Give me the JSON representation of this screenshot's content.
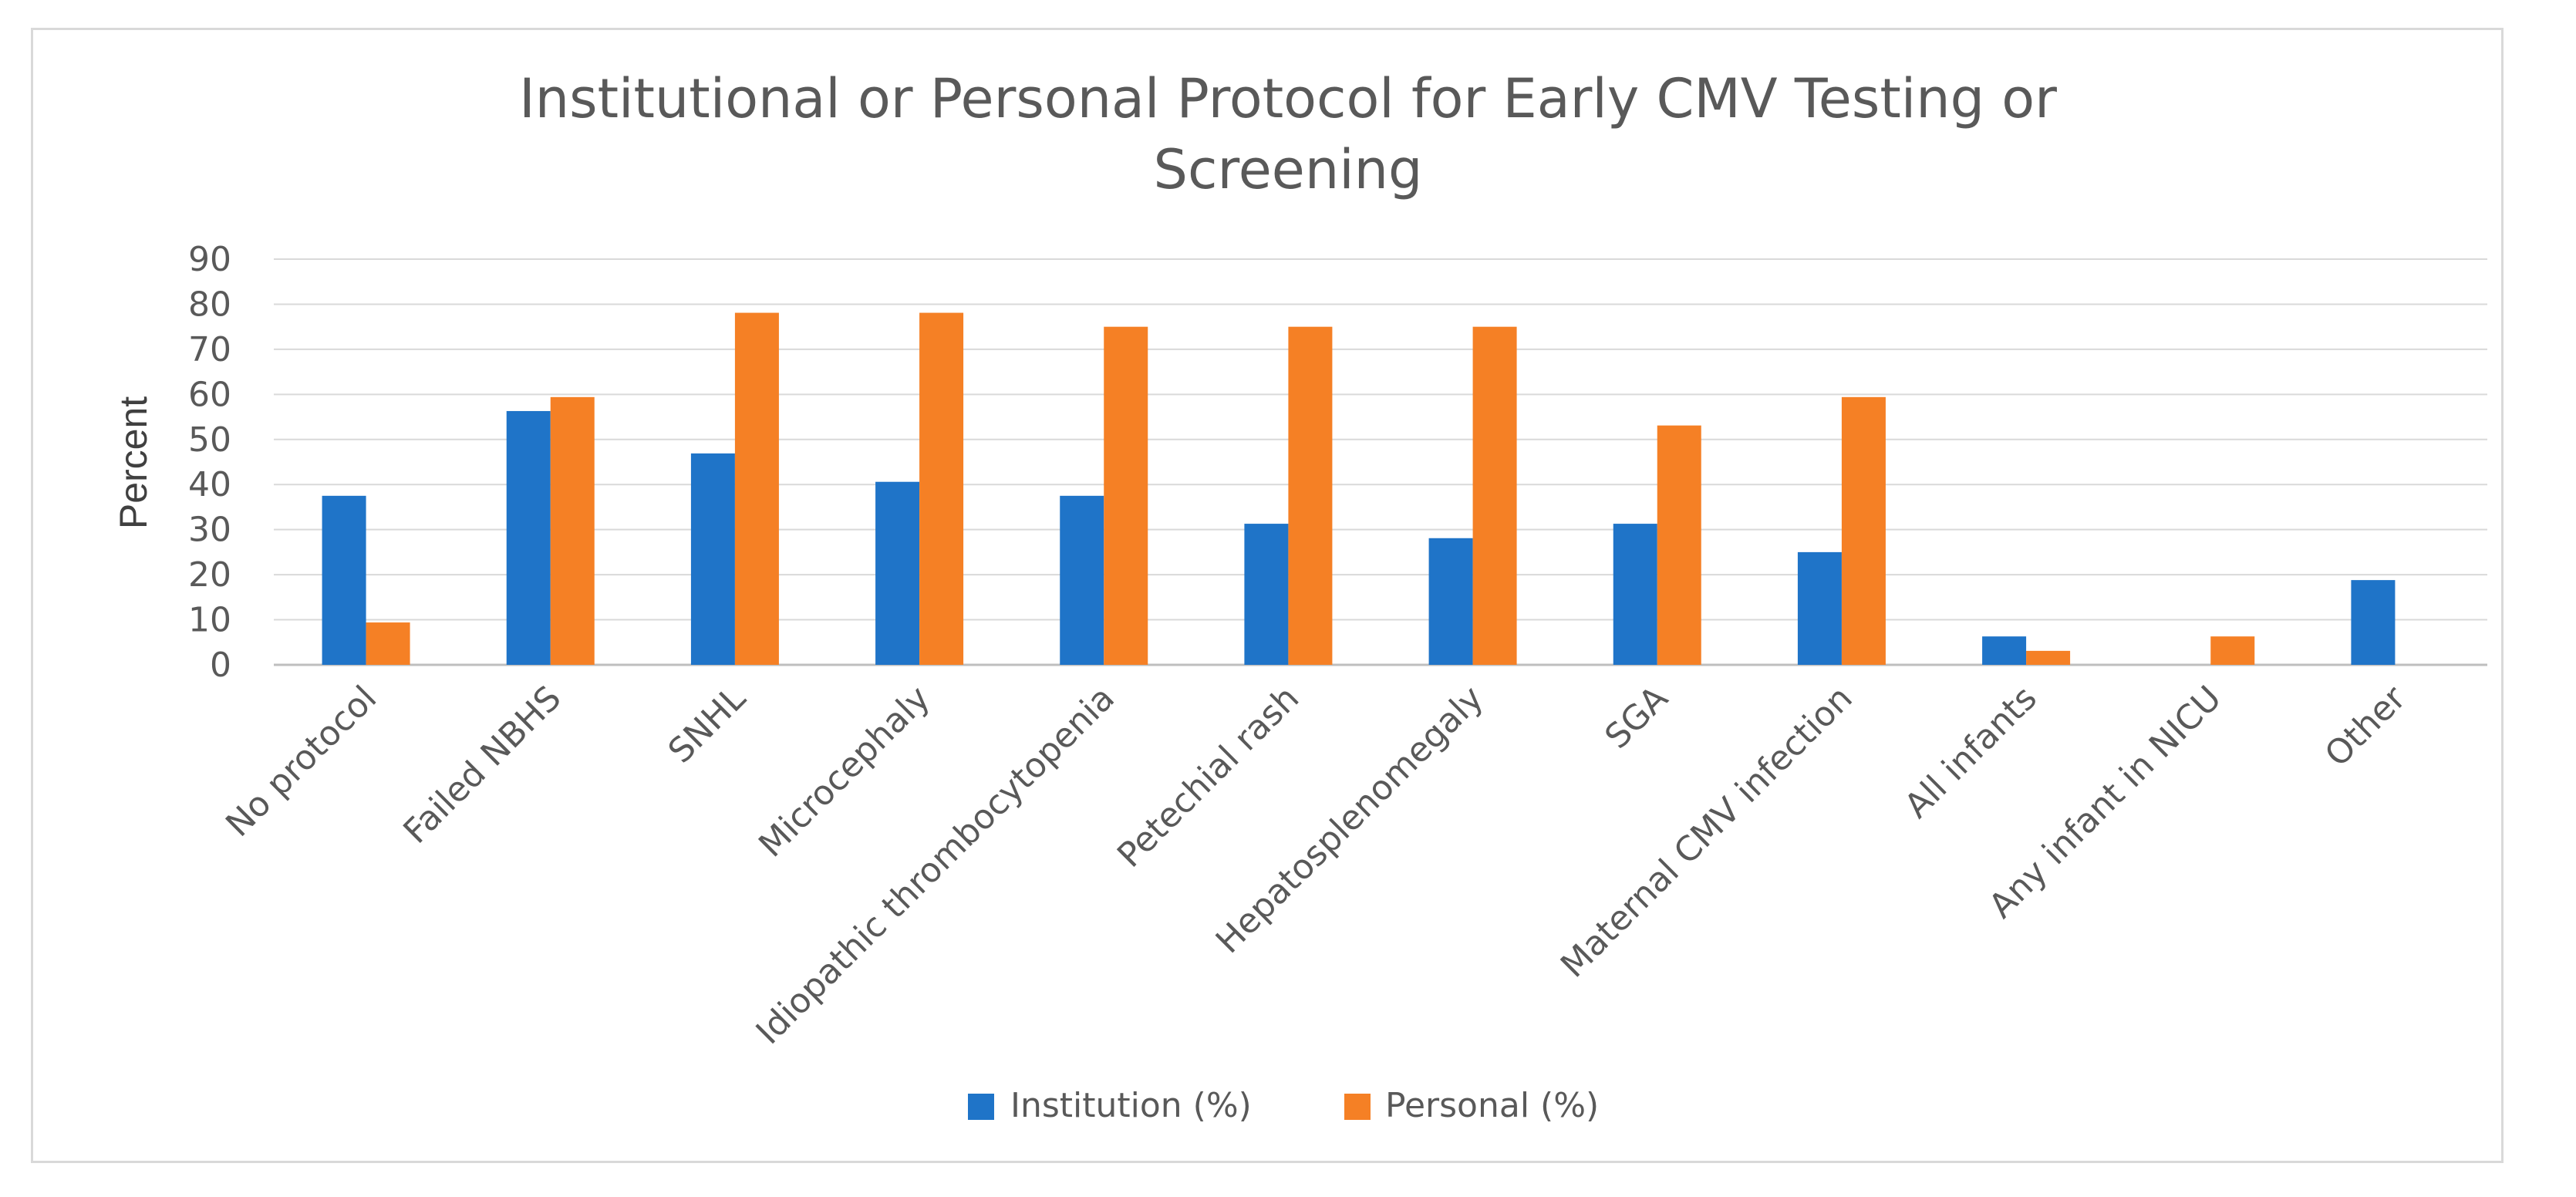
{
  "chart_data": {
    "type": "bar",
    "title_lines": [
      "Institutional or Personal Protocol for Early CMV Testing or",
      "Screening"
    ],
    "xlabel": "",
    "ylabel": "Percent",
    "ylim": [
      0,
      90
    ],
    "ytick_step": 10,
    "grid": true,
    "legend_position": "bottom-center",
    "categories": [
      "No protocol",
      "Failed NBHS",
      "SNHL",
      "Microcephaly",
      "Idiopathic thrombocytopenia",
      "Petechial rash",
      "Hepatosplenomegaly",
      "SGA",
      "Maternal CMV infection",
      "All infants",
      "Any infant in NICU",
      "Other"
    ],
    "series": [
      {
        "name": "Institution (%)",
        "color": "#1f74c8",
        "values": [
          37.5,
          56.3,
          46.9,
          40.6,
          37.5,
          31.3,
          28.1,
          31.3,
          25.0,
          6.3,
          0,
          18.8
        ]
      },
      {
        "name": "Personal (%)",
        "color": "#f58025",
        "values": [
          9.4,
          59.4,
          78.1,
          78.1,
          75.0,
          75.0,
          75.0,
          53.1,
          59.4,
          3.1,
          6.3,
          0
        ]
      }
    ]
  }
}
